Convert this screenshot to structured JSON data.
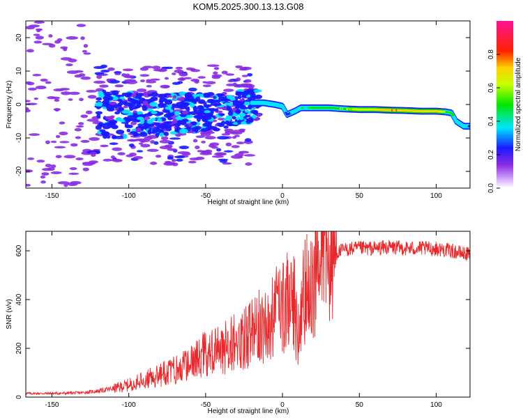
{
  "title": "KOM5.2025.300.13.13.G08",
  "chart_data": [
    {
      "type": "heatmap",
      "xlabel": "Height of straight line (km)",
      "ylabel": "Frequency (Hz)",
      "xlim": [
        -167,
        122
      ],
      "ylim": [
        -25,
        25
      ],
      "xticks": [
        -150,
        -100,
        -50,
        0,
        50,
        100
      ],
      "yticks": [
        -20,
        -10,
        0,
        10,
        20
      ],
      "colorbar": {
        "label": "Normalized spectral amplitude",
        "range": [
          0,
          1
        ],
        "ticks": [
          "0.0",
          "0.2",
          "0.4",
          "0.6",
          "0.8"
        ],
        "tick_values": [
          0,
          0.2,
          0.4,
          0.6,
          0.8
        ]
      },
      "ridge": [
        {
          "x": -20,
          "y": 0.5,
          "amp": 0.25
        },
        {
          "x": -12,
          "y": 0.5,
          "amp": 0.3
        },
        {
          "x": -5,
          "y": 0.0,
          "amp": 0.35
        },
        {
          "x": 0,
          "y": -0.5,
          "amp": 0.3
        },
        {
          "x": 3,
          "y": -3,
          "amp": 0.2
        },
        {
          "x": 8,
          "y": -2,
          "amp": 0.3
        },
        {
          "x": 12,
          "y": -1,
          "amp": 0.35
        },
        {
          "x": 20,
          "y": -1,
          "amp": 0.4
        },
        {
          "x": 30,
          "y": -1,
          "amp": 0.45
        },
        {
          "x": 40,
          "y": -1.3,
          "amp": 0.5
        },
        {
          "x": 50,
          "y": -1.5,
          "amp": 0.55
        },
        {
          "x": 60,
          "y": -1.5,
          "amp": 0.65
        },
        {
          "x": 70,
          "y": -1.7,
          "amp": 0.7
        },
        {
          "x": 80,
          "y": -1.8,
          "amp": 0.7
        },
        {
          "x": 90,
          "y": -2,
          "amp": 0.65
        },
        {
          "x": 100,
          "y": -2,
          "amp": 0.7
        },
        {
          "x": 106,
          "y": -2.2,
          "amp": 0.5
        },
        {
          "x": 110,
          "y": -2.5,
          "amp": 0.4
        },
        {
          "x": 113,
          "y": -5,
          "amp": 0.3
        },
        {
          "x": 118,
          "y": -6.5,
          "amp": 0.3
        },
        {
          "x": 122,
          "y": -6.5,
          "amp": 0.25
        }
      ]
    },
    {
      "type": "line",
      "xlabel": "Height of straight line (km)",
      "ylabel": "SNR (v/v)",
      "xlim": [
        -167,
        122
      ],
      "ylim": [
        0,
        680
      ],
      "xticks": [
        -150,
        -100,
        -50,
        0,
        50,
        100
      ],
      "yticks": [
        0,
        200,
        400,
        600
      ],
      "series": [
        {
          "color": "#e8282b",
          "x": [
            -167,
            -150,
            -130,
            -120,
            -110,
            -100,
            -90,
            -80,
            -70,
            -60,
            -50,
            -40,
            -30,
            -20,
            -15,
            -10,
            -5,
            0,
            5,
            8,
            10,
            12,
            15,
            20,
            25,
            30,
            35,
            40,
            50,
            60,
            70,
            80,
            90,
            100,
            105,
            110,
            115,
            122
          ],
          "y": [
            15,
            15,
            18,
            25,
            35,
            50,
            70,
            90,
            110,
            140,
            180,
            200,
            230,
            260,
            290,
            300,
            340,
            380,
            400,
            380,
            240,
            330,
            450,
            490,
            530,
            560,
            590,
            605,
            610,
            610,
            615,
            610,
            610,
            608,
            605,
            600,
            592,
            585
          ]
        }
      ]
    }
  ]
}
